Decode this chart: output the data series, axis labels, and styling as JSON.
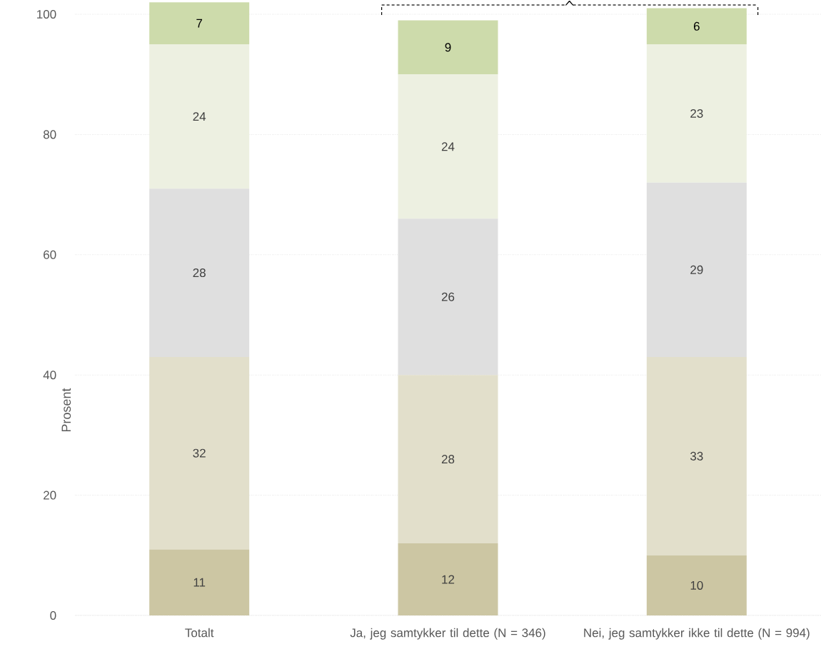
{
  "chart_data": {
    "type": "bar",
    "stacked": true,
    "ylabel": "Prosent",
    "categories": [
      "Totalt",
      "Ja, jeg samtykker til dette (N = 346)",
      "Nei, jeg samtykker ikke til dette (N = 994)"
    ],
    "series": [
      {
        "color": "#ccc6a3",
        "values": [
          11,
          12,
          10
        ]
      },
      {
        "color": "#e2dfcb",
        "values": [
          32,
          28,
          33
        ]
      },
      {
        "color": "#dfdfdf",
        "values": [
          28,
          26,
          29
        ]
      },
      {
        "color": "#edf0e1",
        "values": [
          24,
          24,
          23
        ]
      },
      {
        "color": "#cddbab",
        "values": [
          7,
          9,
          6
        ]
      }
    ],
    "data_labels": true,
    "ylim": [
      0,
      102
    ],
    "yticks": [
      0,
      20,
      40,
      60,
      80,
      100
    ],
    "grid": "y"
  }
}
